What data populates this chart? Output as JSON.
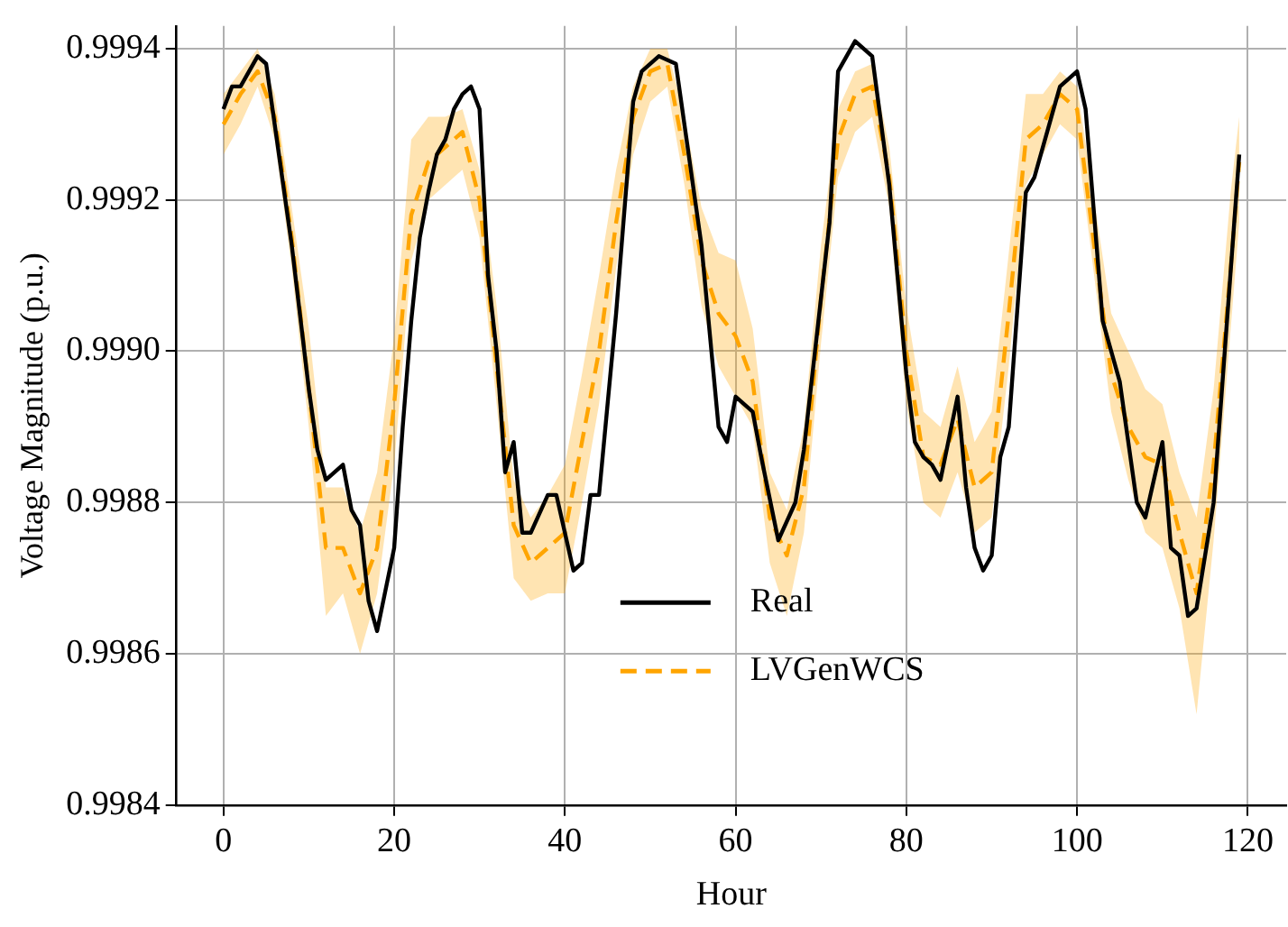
{
  "chart_data": {
    "type": "line",
    "xlabel": "Hour",
    "ylabel": "Voltage Magnitude (p.u.)",
    "xlim": [
      -5.5,
      124.5
    ],
    "ylim": [
      0.9984,
      0.99943
    ],
    "xticks": [
      0,
      20,
      40,
      60,
      80,
      100,
      120
    ],
    "yticks": [
      {
        "value": 0.9984,
        "label": "0.9984"
      },
      {
        "value": 0.9986,
        "label": "0.9986"
      },
      {
        "value": 0.9988,
        "label": "0.9988"
      },
      {
        "value": 0.999,
        "label": "0.9990"
      },
      {
        "value": 0.9992,
        "label": "0.9992"
      },
      {
        "value": 0.9994,
        "label": "0.9994"
      }
    ],
    "grid": true,
    "legend": "bottom",
    "series": [
      {
        "name": "Real",
        "color": "#000000",
        "line_style": "solid",
        "x": [
          0,
          1,
          2,
          3,
          4,
          5,
          6,
          8,
          10,
          11,
          12,
          14,
          15,
          16,
          17,
          18,
          20,
          21,
          22,
          23,
          24,
          25,
          26,
          27,
          28,
          29,
          30,
          31,
          32,
          33,
          34,
          35,
          36,
          38,
          39,
          41,
          42,
          43,
          44,
          46,
          48,
          49,
          51,
          53,
          56,
          58,
          59,
          60,
          62,
          63,
          65,
          67,
          68,
          71,
          72,
          74,
          76,
          78,
          80,
          81,
          82,
          83,
          84,
          86,
          87,
          88,
          89,
          90,
          91,
          92,
          94,
          95,
          97,
          98,
          100,
          101,
          103,
          105,
          107,
          108,
          110,
          111,
          112,
          113,
          114,
          116,
          119
        ],
        "values": [
          0.99932,
          0.99935,
          0.99935,
          0.99937,
          0.99939,
          0.99938,
          0.9993,
          0.99914,
          0.99895,
          0.99887,
          0.99883,
          0.99885,
          0.99879,
          0.99877,
          0.99867,
          0.99863,
          0.99874,
          0.9989,
          0.99904,
          0.99915,
          0.99921,
          0.99926,
          0.99928,
          0.99932,
          0.99934,
          0.99935,
          0.99932,
          0.9991,
          0.999,
          0.99884,
          0.99888,
          0.99876,
          0.99876,
          0.99881,
          0.99881,
          0.99871,
          0.99872,
          0.99881,
          0.99881,
          0.99905,
          0.99933,
          0.99937,
          0.99939,
          0.99938,
          0.99914,
          0.9989,
          0.99888,
          0.99894,
          0.99892,
          0.99886,
          0.99875,
          0.9988,
          0.99887,
          0.99917,
          0.99937,
          0.99941,
          0.99939,
          0.99922,
          0.99897,
          0.99888,
          0.99886,
          0.99885,
          0.99883,
          0.99894,
          0.99882,
          0.99874,
          0.99871,
          0.99873,
          0.99886,
          0.9989,
          0.99921,
          0.99923,
          0.99931,
          0.99935,
          0.99937,
          0.99932,
          0.99904,
          0.99896,
          0.9988,
          0.99878,
          0.99888,
          0.99874,
          0.99873,
          0.99865,
          0.99866,
          0.9988,
          0.99926
        ]
      },
      {
        "name": "LVGenWCS",
        "color": "#ffa500",
        "line_style": "dashed",
        "x": [
          0,
          2,
          4,
          6,
          8,
          10,
          12,
          14,
          16,
          18,
          20,
          22,
          24,
          26,
          28,
          30,
          32,
          34,
          36,
          38,
          40,
          42,
          44,
          46,
          48,
          50,
          52,
          54,
          56,
          58,
          60,
          62,
          64,
          66,
          68,
          70,
          72,
          74,
          76,
          78,
          80,
          82,
          84,
          86,
          88,
          90,
          92,
          94,
          96,
          98,
          100,
          102,
          104,
          106,
          108,
          110,
          112,
          114,
          116,
          118,
          119
        ],
        "values": [
          0.9993,
          0.99934,
          0.99937,
          0.99931,
          0.99915,
          0.99895,
          0.99874,
          0.99874,
          0.99868,
          0.99874,
          0.99893,
          0.99918,
          0.99925,
          0.99927,
          0.99929,
          0.9992,
          0.99898,
          0.99877,
          0.99872,
          0.99874,
          0.99876,
          0.99888,
          0.999,
          0.99917,
          0.99931,
          0.99937,
          0.99938,
          0.99926,
          0.99912,
          0.99905,
          0.99902,
          0.99896,
          0.99878,
          0.99873,
          0.99882,
          0.99907,
          0.99928,
          0.99934,
          0.99935,
          0.99923,
          0.999,
          0.99886,
          0.99885,
          0.99891,
          0.99882,
          0.99884,
          0.99905,
          0.99928,
          0.9993,
          0.99934,
          0.99932,
          0.99914,
          0.99897,
          0.9989,
          0.99886,
          0.99885,
          0.99876,
          0.99868,
          0.99885,
          0.99911,
          0.99925
        ],
        "lower": [
          0.99926,
          0.9993,
          0.99935,
          0.99928,
          0.99911,
          0.9989,
          0.99865,
          0.99868,
          0.9986,
          0.99868,
          0.99885,
          0.99912,
          0.9992,
          0.99922,
          0.99924,
          0.99915,
          0.99893,
          0.9987,
          0.99867,
          0.99868,
          0.99868,
          0.9988,
          0.99893,
          0.99911,
          0.99926,
          0.99933,
          0.99935,
          0.99922,
          0.99906,
          0.99898,
          0.99894,
          0.9989,
          0.99872,
          0.99865,
          0.99876,
          0.99901,
          0.99923,
          0.99929,
          0.99931,
          0.99919,
          0.99893,
          0.9988,
          0.99878,
          0.99884,
          0.99876,
          0.99878,
          0.99898,
          0.99922,
          0.99926,
          0.9993,
          0.99928,
          0.9991,
          0.99892,
          0.99883,
          0.99876,
          0.99874,
          0.99866,
          0.99852,
          0.99875,
          0.99903,
          0.99917
        ],
        "upper": [
          0.99934,
          0.99937,
          0.9994,
          0.99934,
          0.99919,
          0.99903,
          0.99882,
          0.99882,
          0.99876,
          0.99884,
          0.99902,
          0.99928,
          0.99931,
          0.99931,
          0.99932,
          0.99924,
          0.99906,
          0.99883,
          0.99878,
          0.99881,
          0.99885,
          0.99897,
          0.9991,
          0.99924,
          0.99935,
          0.9994,
          0.9994,
          0.99931,
          0.99919,
          0.99913,
          0.99912,
          0.99903,
          0.99884,
          0.99879,
          0.9989,
          0.99914,
          0.99932,
          0.99937,
          0.99938,
          0.99927,
          0.99906,
          0.99892,
          0.9989,
          0.99898,
          0.99888,
          0.99892,
          0.99913,
          0.99934,
          0.99934,
          0.99937,
          0.99935,
          0.9992,
          0.99905,
          0.999,
          0.99895,
          0.99893,
          0.99884,
          0.99878,
          0.99895,
          0.99921,
          0.99931
        ]
      }
    ]
  }
}
